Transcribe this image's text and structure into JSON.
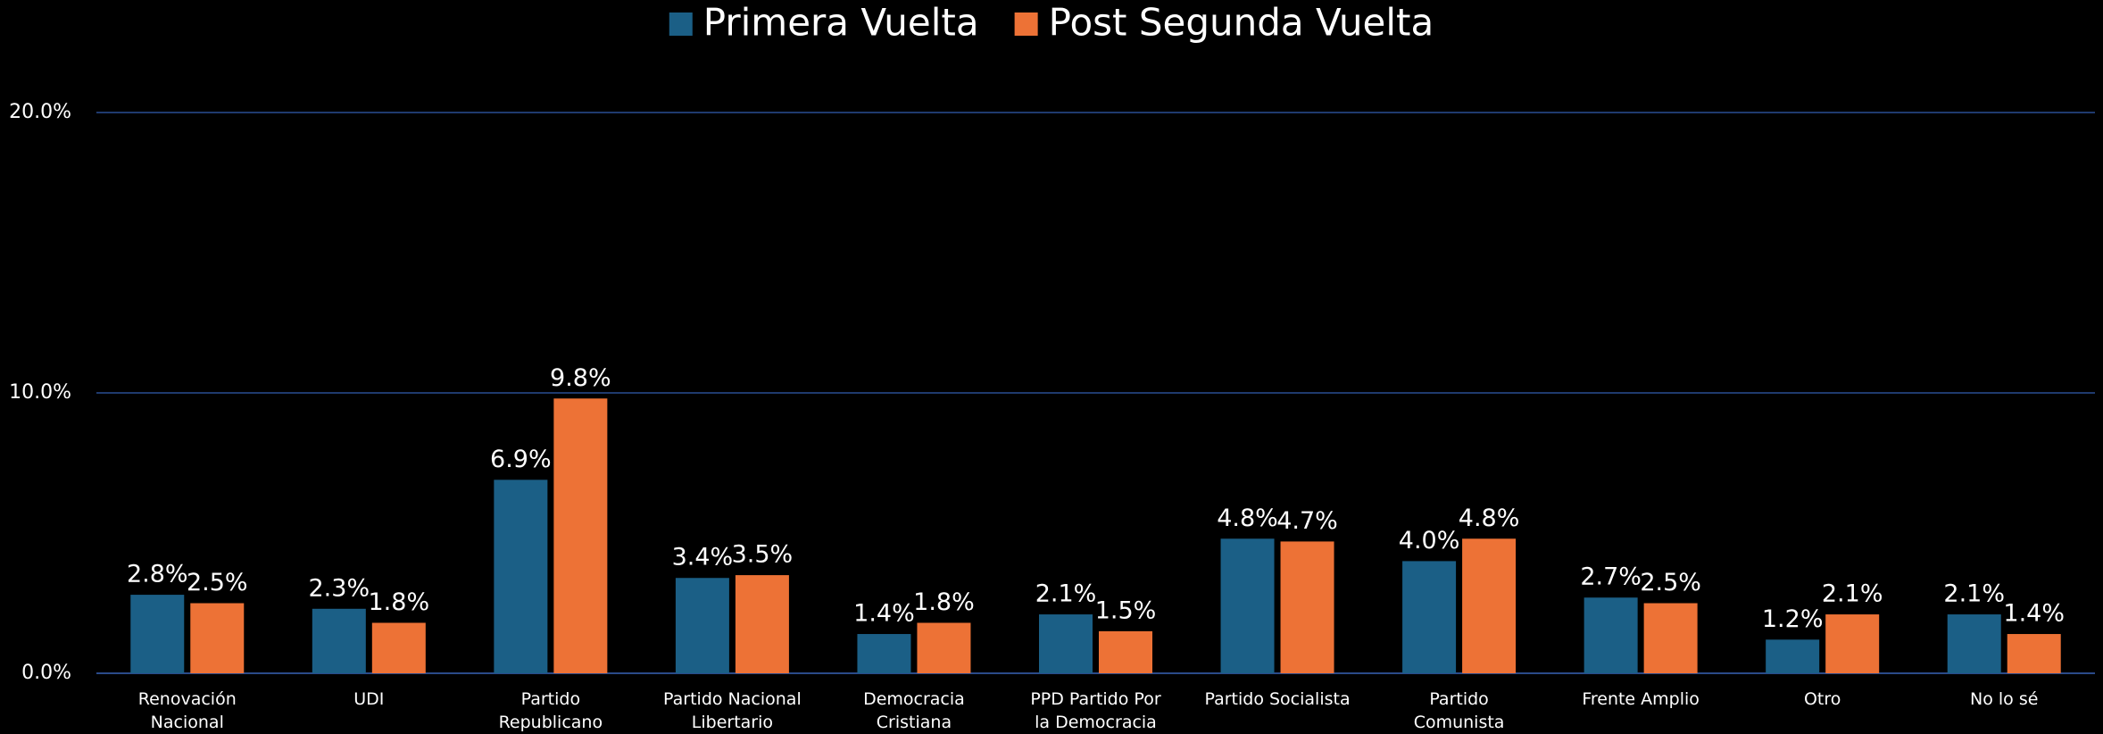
{
  "chart_data": {
    "type": "bar",
    "categories": [
      "Renovación Nacional",
      "UDI",
      "Partido Republicano",
      "Partido Nacional Libertario",
      "Democracia Cristiana",
      "PPD Partido Por la Democracia",
      "Partido Socialista",
      "Partido Comunista",
      "Frente Amplio",
      "Otro",
      "No lo sé"
    ],
    "series": [
      {
        "name": "Primera Vuelta",
        "color": "#1b5f86",
        "values": [
          2.8,
          2.3,
          6.9,
          3.4,
          1.4,
          2.1,
          4.8,
          4.0,
          2.7,
          1.2,
          2.1
        ],
        "value_labels": [
          "2.8%",
          "2.3%",
          "6.9%",
          "3.4%",
          "1.4%",
          "2.1%",
          "4.8%",
          "4.0%",
          "2.7%",
          "1.2%",
          "2.1%"
        ]
      },
      {
        "name": "Post Segunda Vuelta",
        "color": "#ed7236",
        "values": [
          2.5,
          1.8,
          9.8,
          3.5,
          1.8,
          1.5,
          4.7,
          4.8,
          2.5,
          2.1,
          1.4
        ],
        "value_labels": [
          "2.5%",
          "1.8%",
          "9.8%",
          "3.5%",
          "1.8%",
          "1.5%",
          "4.7%",
          "4.8%",
          "2.5%",
          "2.1%",
          "1.4%"
        ]
      }
    ],
    "ylim": [
      0,
      20
    ],
    "yticks": [
      {
        "value": 0,
        "label": "0.0%"
      },
      {
        "value": 10,
        "label": "10.0%"
      },
      {
        "value": 20,
        "label": "20.0%"
      }
    ],
    "grid": true,
    "legend": "top"
  }
}
